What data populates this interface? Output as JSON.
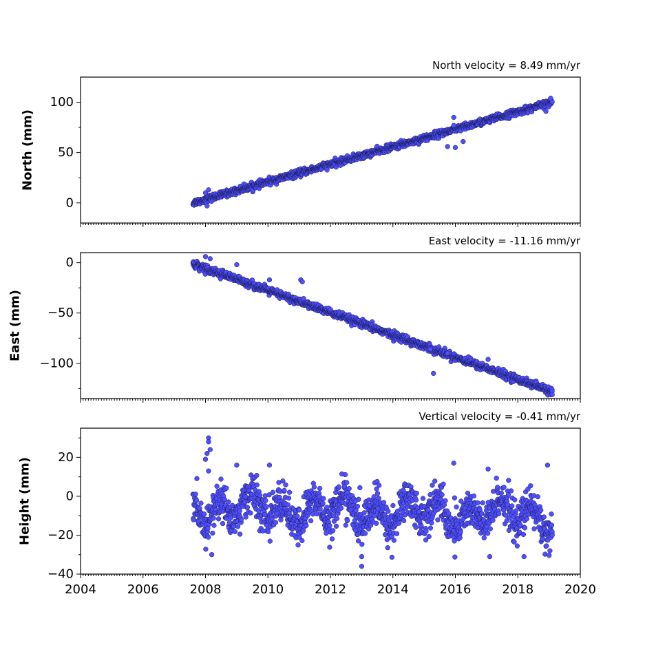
{
  "colors": {
    "marker_fill": "#4f4fff",
    "marker_edge": "#1a1a55",
    "axes": "#000000"
  },
  "chart_data": [
    {
      "type": "scatter",
      "title": "North velocity = 8.49 mm/yr",
      "ylabel": "North (mm)",
      "xlabel": "",
      "xlim": [
        2004,
        2020
      ],
      "ylim": [
        -20,
        125
      ],
      "yticks": [
        0,
        50,
        100
      ],
      "ytick_labels": [
        "0",
        "50",
        "100"
      ],
      "xticks": [
        2004,
        2006,
        2008,
        2010,
        2012,
        2014,
        2016,
        2018,
        2020
      ],
      "xtick_labels_shown": false,
      "grid": false,
      "legend": "none",
      "series": [
        {
          "trend": {
            "x_start": 2007.6,
            "x_end": 2019.1,
            "y_start": 0,
            "y_end": 100
          },
          "scatter_sd": 1.6,
          "outliers": [
            [
              2008.0,
              10
            ],
            [
              2008.1,
              13
            ],
            [
              2008.05,
              -3
            ],
            [
              2015.95,
              85
            ],
            [
              2015.95,
              77
            ],
            [
              2015.75,
              56
            ],
            [
              2016.0,
              55
            ],
            [
              2016.25,
              61
            ],
            [
              2018.9,
              91
            ],
            [
              2019.05,
              104
            ]
          ]
        }
      ]
    },
    {
      "type": "scatter",
      "title": "East velocity = -11.16 mm/yr",
      "ylabel": "East (mm)",
      "xlabel": "",
      "xlim": [
        2004,
        2020
      ],
      "ylim": [
        -135,
        10
      ],
      "yticks": [
        -100,
        -50,
        0
      ],
      "ytick_labels": [
        "−100",
        "−50",
        "0"
      ],
      "xticks": [
        2004,
        2006,
        2008,
        2010,
        2012,
        2014,
        2016,
        2018,
        2020
      ],
      "xtick_labels_shown": false,
      "grid": false,
      "legend": "none",
      "series": [
        {
          "trend": {
            "x_start": 2007.6,
            "x_end": 2019.1,
            "y_start": -1,
            "y_end": -128
          },
          "scatter_sd": 1.8,
          "outliers": [
            [
              2008.0,
              6
            ],
            [
              2008.15,
              4
            ],
            [
              2009.0,
              -2
            ],
            [
              2010.05,
              -17
            ],
            [
              2011.05,
              -17
            ],
            [
              2011.1,
              -19
            ],
            [
              2015.3,
              -110
            ],
            [
              2015.75,
              -90
            ],
            [
              2015.2,
              -86
            ],
            [
              2017.05,
              -96
            ],
            [
              2019.1,
              -131
            ]
          ]
        }
      ]
    },
    {
      "type": "scatter",
      "title": "Vertical velocity = -0.41 mm/yr",
      "ylabel": "Height (mm)",
      "xlabel": "",
      "xlim": [
        2004,
        2020
      ],
      "ylim": [
        -40,
        35
      ],
      "yticks": [
        -40,
        -20,
        0,
        20
      ],
      "ytick_labels": [
        "−40",
        "−20",
        "0",
        "20"
      ],
      "xticks": [
        2004,
        2006,
        2008,
        2010,
        2012,
        2014,
        2016,
        2018,
        2020
      ],
      "xtick_labels": [
        "2004",
        "2006",
        "2008",
        "2010",
        "2012",
        "2014",
        "2016",
        "2018",
        "2020"
      ],
      "xtick_labels_shown": true,
      "grid": false,
      "legend": "none",
      "series": [
        {
          "trend": {
            "x_start": 2007.6,
            "x_end": 2019.1,
            "y_start": -6,
            "y_end": -10
          },
          "seasonal_amplitude": 6,
          "scatter_sd": 5,
          "outliers": [
            [
              2008.1,
              30
            ],
            [
              2008.1,
              28
            ],
            [
              2008.15,
              24
            ],
            [
              2008.05,
              22
            ],
            [
              2008.0,
              19
            ],
            [
              2008.1,
              13
            ],
            [
              2008.2,
              -30
            ],
            [
              2009.0,
              16
            ],
            [
              2010.05,
              16
            ],
            [
              2013.0,
              -36
            ],
            [
              2013.0,
              -31
            ],
            [
              2015.95,
              17
            ],
            [
              2017.05,
              14
            ],
            [
              2017.1,
              -31
            ],
            [
              2018.2,
              -31
            ],
            [
              2018.95,
              16
            ],
            [
              2019.1,
              -20
            ]
          ]
        }
      ]
    }
  ]
}
